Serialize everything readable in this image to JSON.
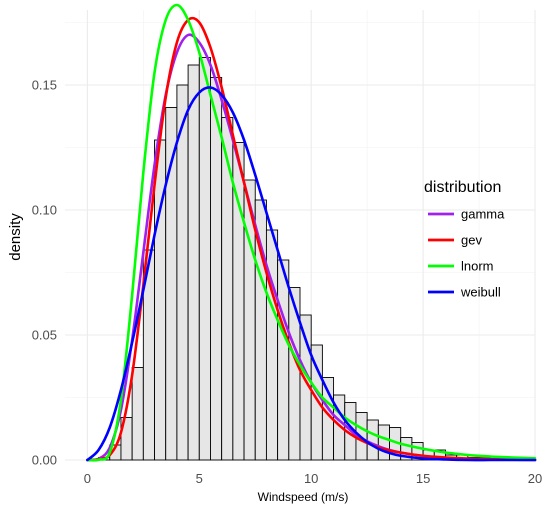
{
  "chart_data": {
    "type": "histogram-density",
    "xlabel": "Windspeed (m/s)",
    "ylabel": "density",
    "xlim": [
      -1,
      20
    ],
    "ylim": [
      0,
      0.18
    ],
    "x_ticks": [
      0,
      5,
      10,
      15,
      20
    ],
    "y_ticks": [
      0.0,
      0.05,
      0.1,
      0.15
    ],
    "y_tick_labels": [
      "0.00",
      "0.05",
      "0.10",
      "0.15"
    ],
    "grid": true,
    "histogram": {
      "bin_width": 0.5,
      "fill": "#e6e6e6",
      "stroke": "#000000",
      "bins": [
        {
          "x0": 0.0,
          "density": 0.0
        },
        {
          "x0": 0.5,
          "density": 0.001
        },
        {
          "x0": 1.0,
          "density": 0.006
        },
        {
          "x0": 1.5,
          "density": 0.017
        },
        {
          "x0": 2.0,
          "density": 0.037
        },
        {
          "x0": 2.5,
          "density": 0.084
        },
        {
          "x0": 3.0,
          "density": 0.128
        },
        {
          "x0": 3.5,
          "density": 0.141
        },
        {
          "x0": 4.0,
          "density": 0.15
        },
        {
          "x0": 4.5,
          "density": 0.158
        },
        {
          "x0": 5.0,
          "density": 0.161
        },
        {
          "x0": 5.5,
          "density": 0.153
        },
        {
          "x0": 6.0,
          "density": 0.137
        },
        {
          "x0": 6.5,
          "density": 0.127
        },
        {
          "x0": 7.0,
          "density": 0.112
        },
        {
          "x0": 7.5,
          "density": 0.104
        },
        {
          "x0": 8.0,
          "density": 0.092
        },
        {
          "x0": 8.5,
          "density": 0.08
        },
        {
          "x0": 9.0,
          "density": 0.069
        },
        {
          "x0": 9.5,
          "density": 0.058
        },
        {
          "x0": 10.0,
          "density": 0.046
        },
        {
          "x0": 10.5,
          "density": 0.033
        },
        {
          "x0": 11.0,
          "density": 0.026
        },
        {
          "x0": 11.5,
          "density": 0.023
        },
        {
          "x0": 12.0,
          "density": 0.019
        },
        {
          "x0": 12.5,
          "density": 0.016
        },
        {
          "x0": 13.0,
          "density": 0.014
        },
        {
          "x0": 13.5,
          "density": 0.013
        },
        {
          "x0": 14.0,
          "density": 0.009
        },
        {
          "x0": 14.5,
          "density": 0.007
        },
        {
          "x0": 15.0,
          "density": 0.004
        },
        {
          "x0": 15.5,
          "density": 0.004
        },
        {
          "x0": 16.0,
          "density": 0.002
        },
        {
          "x0": 16.5,
          "density": 0.002
        },
        {
          "x0": 17.0,
          "density": 0.001
        },
        {
          "x0": 17.5,
          "density": 0.001
        },
        {
          "x0": 18.0,
          "density": 0.0
        },
        {
          "x0": 18.5,
          "density": 0.0
        },
        {
          "x0": 19.0,
          "density": 0.0
        },
        {
          "x0": 19.5,
          "density": 0.0
        }
      ]
    },
    "legend": {
      "title": "distribution",
      "position": "right"
    },
    "series": [
      {
        "name": "gamma",
        "color": "#a020f0",
        "x": [
          0.0,
          0.5,
          1.0,
          1.5,
          2.0,
          2.5,
          3.0,
          3.5,
          4.0,
          4.5,
          5.0,
          5.5,
          6.0,
          6.5,
          7.0,
          7.5,
          8.0,
          8.5,
          9.0,
          9.5,
          10.0,
          10.5,
          11.0,
          11.5,
          12.0,
          12.5,
          13.0,
          13.5,
          14.0,
          15.0,
          16.0,
          17.0,
          18.0,
          19.0,
          20.0
        ],
        "y": [
          0.0,
          0.0005,
          0.005,
          0.02,
          0.048,
          0.083,
          0.118,
          0.146,
          0.163,
          0.17,
          0.167,
          0.158,
          0.144,
          0.128,
          0.111,
          0.094,
          0.078,
          0.064,
          0.051,
          0.04,
          0.031,
          0.024,
          0.018,
          0.014,
          0.01,
          0.0075,
          0.0055,
          0.004,
          0.003,
          0.0016,
          0.0008,
          0.0004,
          0.0002,
          0.0001,
          0.0
        ]
      },
      {
        "name": "gev",
        "color": "#ff0000",
        "x": [
          0.0,
          0.5,
          1.0,
          1.5,
          2.0,
          2.5,
          3.0,
          3.5,
          4.0,
          4.5,
          5.0,
          5.5,
          6.0,
          6.5,
          7.0,
          7.5,
          8.0,
          8.5,
          9.0,
          9.5,
          10.0,
          10.5,
          11.0,
          11.5,
          12.0,
          12.5,
          13.0,
          13.5,
          14.0,
          15.0,
          16.0,
          17.0,
          18.0,
          19.0,
          20.0
        ],
        "y": [
          0.0,
          0.0003,
          0.002,
          0.011,
          0.034,
          0.07,
          0.11,
          0.145,
          0.167,
          0.176,
          0.175,
          0.165,
          0.149,
          0.13,
          0.111,
          0.092,
          0.075,
          0.06,
          0.047,
          0.036,
          0.028,
          0.021,
          0.016,
          0.012,
          0.009,
          0.0068,
          0.005,
          0.0038,
          0.0029,
          0.0017,
          0.001,
          0.0006,
          0.0004,
          0.0002,
          0.0001
        ]
      },
      {
        "name": "lnorm",
        "color": "#00ff00",
        "x": [
          0.0,
          0.5,
          1.0,
          1.5,
          2.0,
          2.5,
          3.0,
          3.5,
          4.0,
          4.5,
          5.0,
          5.5,
          6.0,
          6.5,
          7.0,
          7.5,
          8.0,
          8.5,
          9.0,
          9.5,
          10.0,
          10.5,
          11.0,
          11.5,
          12.0,
          12.5,
          13.0,
          13.5,
          14.0,
          15.0,
          16.0,
          17.0,
          18.0,
          19.0,
          20.0
        ],
        "y": [
          0.0,
          0.0001,
          0.003,
          0.024,
          0.066,
          0.115,
          0.155,
          0.176,
          0.182,
          0.176,
          0.163,
          0.146,
          0.129,
          0.111,
          0.095,
          0.08,
          0.067,
          0.056,
          0.046,
          0.038,
          0.031,
          0.025,
          0.021,
          0.017,
          0.014,
          0.0115,
          0.0095,
          0.008,
          0.0065,
          0.0045,
          0.003,
          0.002,
          0.0014,
          0.001,
          0.0007
        ]
      },
      {
        "name": "weibull",
        "color": "#0000ff",
        "x": [
          0.0,
          0.5,
          1.0,
          1.5,
          2.0,
          2.5,
          3.0,
          3.5,
          4.0,
          4.5,
          5.0,
          5.5,
          6.0,
          6.5,
          7.0,
          7.5,
          8.0,
          8.5,
          9.0,
          9.5,
          10.0,
          10.5,
          11.0,
          11.5,
          12.0,
          12.5,
          13.0,
          13.5,
          14.0,
          15.0,
          16.0,
          17.0,
          18.0,
          19.0,
          20.0
        ],
        "y": [
          0.0,
          0.004,
          0.013,
          0.028,
          0.047,
          0.068,
          0.09,
          0.11,
          0.127,
          0.14,
          0.147,
          0.149,
          0.146,
          0.139,
          0.128,
          0.114,
          0.099,
          0.084,
          0.069,
          0.055,
          0.042,
          0.032,
          0.023,
          0.016,
          0.011,
          0.0072,
          0.0045,
          0.0028,
          0.0017,
          0.0006,
          0.0002,
          0.0,
          0.0,
          0.0,
          0.0
        ]
      }
    ]
  }
}
